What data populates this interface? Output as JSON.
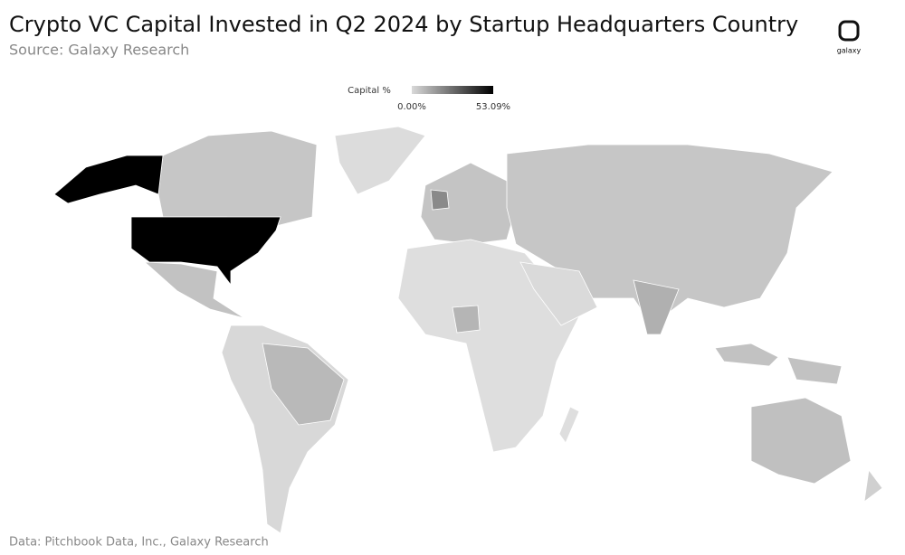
{
  "header": {
    "title": "Crypto VC Capital Invested  in Q2 2024 by Startup Headquarters Country",
    "subtitle": "Source: Galaxy Research"
  },
  "logo": {
    "text": "galaxy"
  },
  "legend": {
    "title": "Capital %",
    "ticks": [
      {
        "value": 0,
        "label": "0.00%"
      },
      {
        "value": 53.09,
        "label": "53.09%"
      }
    ],
    "colors": [
      "#d9d9d9",
      "#000000"
    ]
  },
  "footer": "Data: Pitchbook Data, Inc., Galaxy Research"
}
